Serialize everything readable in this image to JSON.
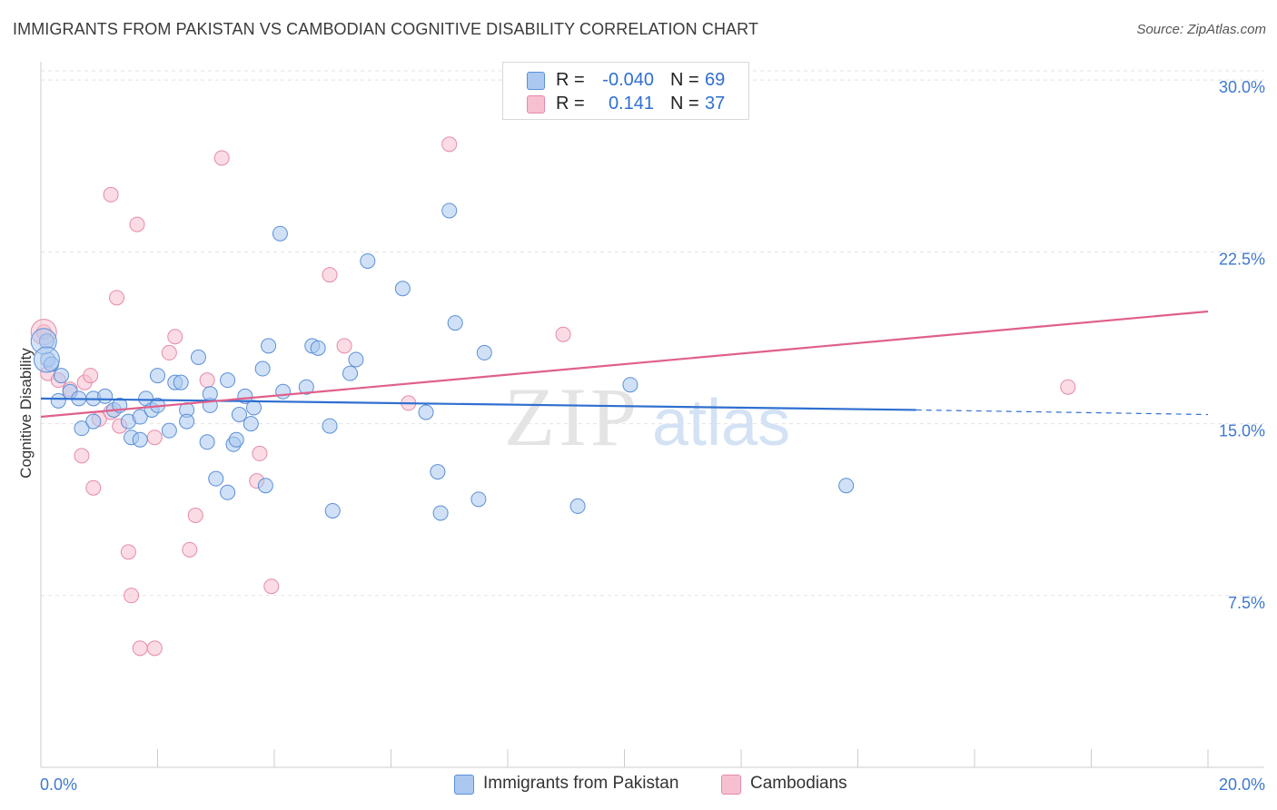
{
  "title": "IMMIGRANTS FROM PAKISTAN VS CAMBODIAN COGNITIVE DISABILITY CORRELATION CHART",
  "source": "Source: ZipAtlas.com",
  "watermark": {
    "zip": "ZIP",
    "atlas": "atlas"
  },
  "legend": {
    "rows": [
      {
        "r_label": "R =",
        "r_value": "-0.040",
        "n_label": "N =",
        "n_value": "69",
        "color": "#aac8f0",
        "border": "#5b8fd6"
      },
      {
        "r_label": "R =",
        "r_value": "0.141",
        "n_label": "N =",
        "n_value": "37",
        "color": "#f7c0d0",
        "border": "#e58aa8"
      }
    ]
  },
  "bottom_legend": [
    {
      "label": "Immigrants from Pakistan",
      "color": "#aac8f0",
      "border": "#5b8fd6"
    },
    {
      "label": "Cambodians",
      "color": "#f7c0d0",
      "border": "#e58aa8"
    }
  ],
  "chart_data": {
    "type": "scatter",
    "title": "IMMIGRANTS FROM PAKISTAN VS CAMBODIAN COGNITIVE DISABILITY CORRELATION CHART",
    "xlabel": "",
    "ylabel": "Cognitive Disability",
    "xlim": [
      0,
      20
    ],
    "ylim": [
      0,
      30.8
    ],
    "x_tick_labels": [
      "0.0%",
      "20.0%"
    ],
    "y_ticks": [
      7.5,
      15.0,
      22.5,
      30.0
    ],
    "y_tick_labels": [
      "7.5%",
      "15.0%",
      "22.5%",
      "30.0%"
    ],
    "grid": "horizontal-dashed",
    "legend_position": "top-center",
    "colors": {
      "pakistan": "#5b8fd6",
      "pakistan_fill": "#aac8f0",
      "cambodians": "#e58aa8",
      "cambodians_fill": "#f7c0d0",
      "pakistan_line": "#2f6fd0",
      "cambodians_line": "#e0608a"
    },
    "series": [
      {
        "name": "Immigrants from Pakistan",
        "trend": {
          "x": [
            0,
            15
          ],
          "y": [
            16.1,
            15.6
          ],
          "dashed_to": [
            20,
            15.4
          ]
        },
        "points": [
          [
            0.1,
            18.6
          ],
          [
            0.12,
            17.8
          ],
          [
            0.18,
            17.6
          ],
          [
            0.35,
            17.1
          ],
          [
            0.3,
            16.0
          ],
          [
            0.5,
            16.4
          ],
          [
            0.65,
            16.1
          ],
          [
            0.7,
            14.8
          ],
          [
            0.9,
            15.1
          ],
          [
            0.9,
            16.1
          ],
          [
            1.1,
            16.2
          ],
          [
            1.25,
            15.6
          ],
          [
            1.35,
            15.8
          ],
          [
            1.5,
            15.1
          ],
          [
            1.55,
            14.4
          ],
          [
            1.7,
            15.3
          ],
          [
            1.7,
            14.3
          ],
          [
            1.8,
            16.1
          ],
          [
            1.9,
            15.6
          ],
          [
            2.0,
            15.8
          ],
          [
            2.0,
            17.1
          ],
          [
            2.2,
            14.7
          ],
          [
            2.3,
            16.8
          ],
          [
            2.4,
            16.8
          ],
          [
            2.5,
            15.6
          ],
          [
            2.5,
            15.1
          ],
          [
            2.7,
            17.9
          ],
          [
            2.85,
            14.2
          ],
          [
            2.9,
            15.8
          ],
          [
            2.9,
            16.3
          ],
          [
            3.0,
            12.6
          ],
          [
            3.2,
            12.0
          ],
          [
            3.2,
            16.9
          ],
          [
            3.3,
            14.1
          ],
          [
            3.35,
            14.3
          ],
          [
            3.4,
            15.4
          ],
          [
            3.5,
            16.2
          ],
          [
            3.6,
            15.0
          ],
          [
            3.65,
            15.7
          ],
          [
            3.8,
            17.4
          ],
          [
            3.85,
            12.3
          ],
          [
            3.9,
            18.4
          ],
          [
            4.1,
            23.3
          ],
          [
            4.15,
            16.4
          ],
          [
            4.55,
            16.6
          ],
          [
            4.65,
            18.4
          ],
          [
            4.75,
            18.3
          ],
          [
            4.95,
            14.9
          ],
          [
            5.0,
            11.2
          ],
          [
            5.3,
            17.2
          ],
          [
            5.4,
            17.8
          ],
          [
            5.6,
            22.1
          ],
          [
            6.2,
            20.9
          ],
          [
            6.6,
            15.5
          ],
          [
            6.8,
            12.9
          ],
          [
            6.85,
            11.1
          ],
          [
            7.0,
            24.3
          ],
          [
            7.1,
            19.4
          ],
          [
            7.5,
            11.7
          ],
          [
            7.6,
            18.1
          ],
          [
            9.2,
            11.4
          ],
          [
            10.1,
            16.7
          ],
          [
            13.8,
            12.3
          ]
        ],
        "large_points": [
          [
            0.05,
            18.6
          ],
          [
            0.1,
            17.8
          ]
        ]
      },
      {
        "name": "Cambodians",
        "trend": {
          "x": [
            0,
            20
          ],
          "y": [
            15.3,
            19.9
          ]
        },
        "points": [
          [
            0.05,
            19.0
          ],
          [
            0.12,
            17.2
          ],
          [
            0.3,
            16.9
          ],
          [
            0.5,
            16.5
          ],
          [
            0.7,
            13.6
          ],
          [
            0.75,
            16.8
          ],
          [
            0.85,
            17.1
          ],
          [
            0.9,
            12.2
          ],
          [
            1.0,
            15.2
          ],
          [
            1.2,
            15.5
          ],
          [
            1.2,
            25.0
          ],
          [
            1.3,
            20.5
          ],
          [
            1.35,
            14.9
          ],
          [
            1.5,
            9.4
          ],
          [
            1.55,
            7.5
          ],
          [
            1.65,
            23.7
          ],
          [
            1.7,
            5.2
          ],
          [
            1.95,
            14.4
          ],
          [
            1.95,
            5.2
          ],
          [
            2.2,
            18.1
          ],
          [
            2.3,
            18.8
          ],
          [
            2.55,
            9.5
          ],
          [
            2.65,
            11.0
          ],
          [
            2.85,
            16.9
          ],
          [
            3.1,
            26.6
          ],
          [
            3.7,
            12.5
          ],
          [
            3.75,
            13.7
          ],
          [
            3.95,
            7.9
          ],
          [
            4.95,
            21.5
          ],
          [
            5.2,
            18.4
          ],
          [
            6.3,
            15.9
          ],
          [
            7.0,
            27.2
          ],
          [
            8.95,
            18.9
          ],
          [
            17.6,
            16.6
          ]
        ],
        "large_points": [
          [
            0.05,
            19.0
          ]
        ]
      }
    ]
  }
}
